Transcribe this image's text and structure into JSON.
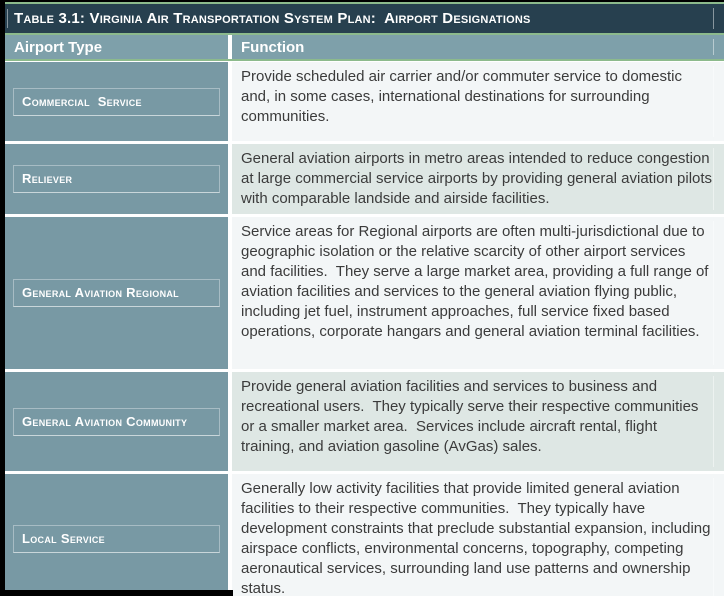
{
  "table": {
    "title": "Table 3.1: Virginia Air Transportation System Plan:  Airport Designations",
    "columns": {
      "type_label": "Airport Type",
      "function_label": "Function"
    },
    "rows": [
      {
        "type": "Commercial  Service",
        "function": "Provide scheduled air carrier and/or commuter service to domestic and, in some cases, international destinations for surrounding communities."
      },
      {
        "type": "Reliever",
        "function": "General aviation airports in metro areas intended to reduce congestion at large commercial service airports by providing general aviation pilots with comparable landside and airside facilities."
      },
      {
        "type": "General Aviation Regional",
        "function": "Service areas for Regional airports are often multi-jurisdictional due to geographic isolation or the relative scarcity of other airport services and facilities.  They serve a large market area, providing a full range of aviation facilities and services to the general aviation flying public, including jet fuel, instrument approaches, full service fixed based operations, corporate hangars and general aviation terminal facilities."
      },
      {
        "type": "General Aviation Community",
        "function": "Provide general aviation facilities and services to business and recreational users.  They typically serve their respective communities or a smaller market area.  Services include aircraft rental, flight training, and aviation gasoline (AvGas) sales."
      },
      {
        "type": "Local Service",
        "function": "Generally low activity facilities that provide limited general aviation facilities to their respective communities.  They typically have development constraints that preclude substantial expansion, including airspace conflicts, environmental concerns, topography, competing aeronautical services, surrounding land use patterns and ownership status."
      }
    ]
  },
  "colors": {
    "title_bar": "#27404F",
    "accent_green": "#8CBA8C",
    "header_bg": "#7EA0AA",
    "type_cell_bg": "#7899A4",
    "row_bg": "#F3F6F7",
    "row_alt_bg": "#DEE7E4",
    "text_dark": "#3B3B3B",
    "border_black": "#000000",
    "cell_gap": "#FFFFFF"
  }
}
